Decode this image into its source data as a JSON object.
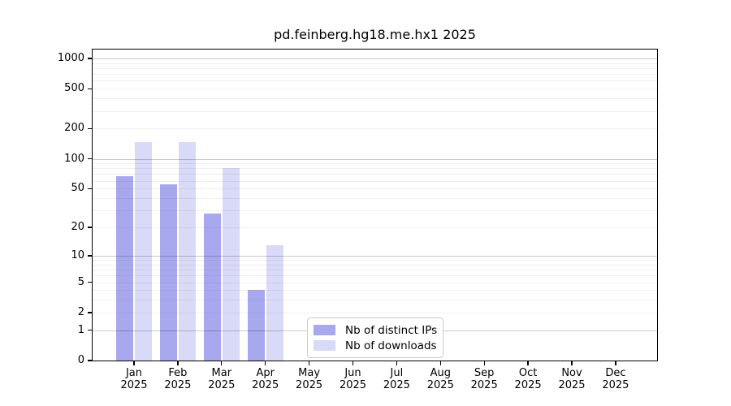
{
  "window": {
    "background": "#ffffff"
  },
  "chart_data": {
    "type": "bar",
    "title": "pd.feinberg.hg18.me.hx1 2025",
    "categories": [
      "Jan 2025",
      "Feb 2025",
      "Mar 2025",
      "Apr 2025",
      "May 2025",
      "Jun 2025",
      "Jul 2025",
      "Aug 2025",
      "Sep 2025",
      "Oct 2025",
      "Nov 2025",
      "Dec 2025"
    ],
    "series": [
      {
        "name": "Nb of distinct IPs",
        "color": "#a8a8ee",
        "values": [
          67,
          55,
          28,
          4,
          0,
          0,
          0,
          0,
          0,
          0,
          0,
          0
        ]
      },
      {
        "name": "Nb of downloads",
        "color": "#d9d9f8",
        "values": [
          148,
          148,
          80,
          13,
          0,
          0,
          0,
          0,
          0,
          0,
          0,
          0
        ]
      }
    ],
    "yscale": "log1p",
    "ylim": [
      0,
      1000
    ],
    "yticks": [
      0,
      1,
      2,
      5,
      10,
      20,
      50,
      100,
      200,
      500,
      1000
    ],
    "grid": true,
    "grid_major_color": "#c9c9c9",
    "grid_minor_color": "#f0f0f0",
    "axis_color": "#000000",
    "legend_position": "bottom-center-inside"
  }
}
